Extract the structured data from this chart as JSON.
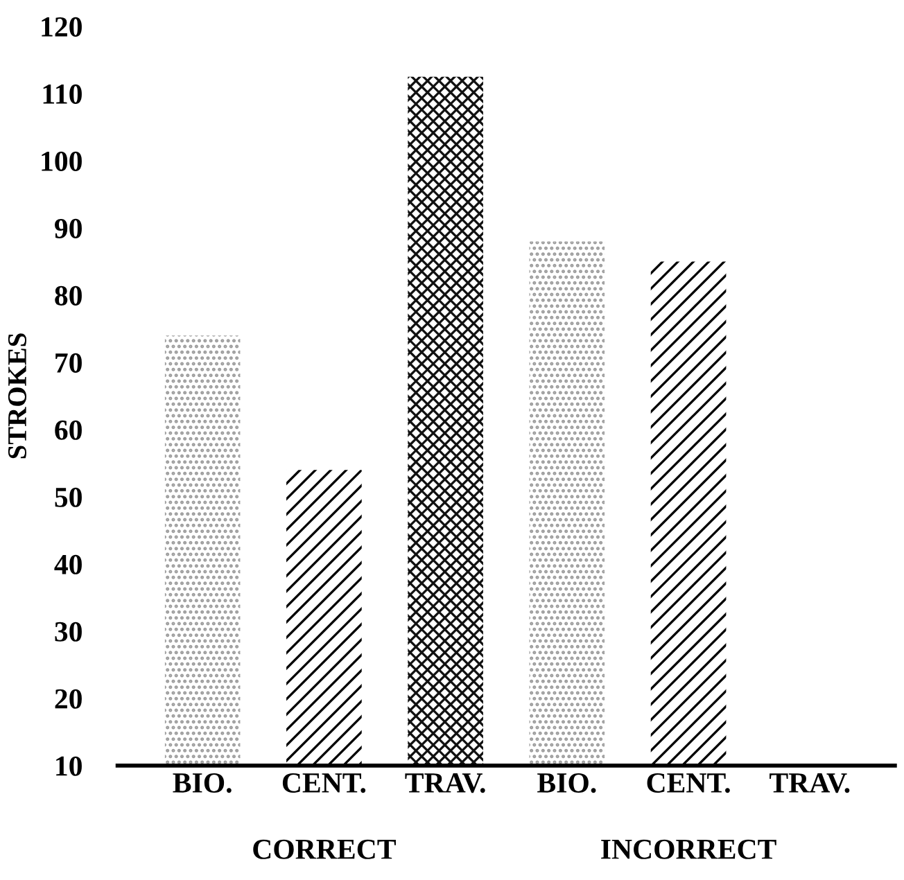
{
  "chart_data": {
    "type": "bar",
    "ylabel": "STROKES",
    "categories": [
      "BIO.",
      "CENT.",
      "TRAV.",
      "BIO.",
      "CENT.",
      "TRAV."
    ],
    "values": [
      74,
      54,
      112.5,
      88,
      85,
      null
    ],
    "colors": [
      "#9a9a9a",
      "#000000",
      "#111111",
      "#9a9a9a",
      "#000000",
      "#111111"
    ],
    "annotations": [
      "CORRECT",
      "INCORRECT"
    ],
    "ylim": [
      10,
      120
    ],
    "yticks": [
      10,
      20,
      30,
      40,
      50,
      60,
      70,
      80,
      90,
      100,
      110,
      120
    ],
    "grid": false,
    "legend": false
  }
}
